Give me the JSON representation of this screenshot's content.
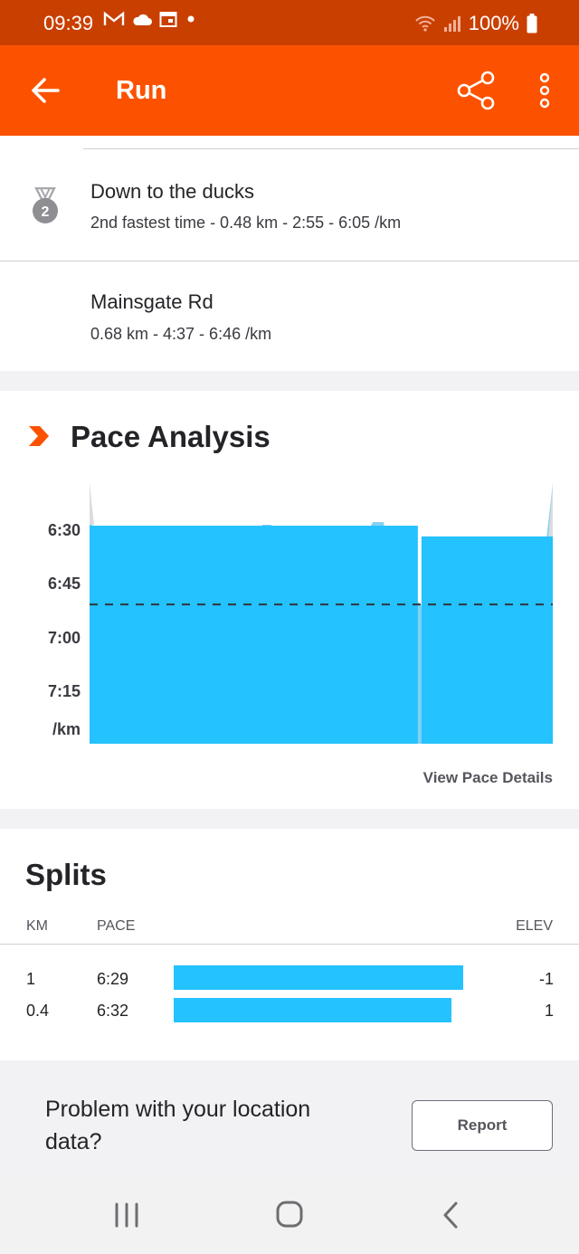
{
  "status_bar": {
    "time": "09:39",
    "battery": "100%"
  },
  "app_bar": {
    "title": "Run"
  },
  "segments": [
    {
      "title": "Down to the ducks",
      "subtitle": "2nd fastest time - 0.48 km - 2:55 - 6:05 /km",
      "medal_rank": "2"
    },
    {
      "title": "Mainsgate Rd",
      "subtitle": "0.68 km - 4:37 - 6:46 /km"
    }
  ],
  "pace_analysis": {
    "title": "Pace Analysis",
    "view_details": "View Pace Details",
    "y_unit": "/km",
    "chart_data": {
      "type": "bar",
      "categories": [
        "1",
        "0.4"
      ],
      "values": [
        "6:29",
        "6:32"
      ],
      "y_ticks": [
        "6:30",
        "6:45",
        "7:00",
        "7:15"
      ],
      "average_line": "6:51",
      "bar_color": "#24c2ff",
      "trace_color": "#1ea9e8"
    }
  },
  "splits": {
    "title": "Splits",
    "headers": {
      "km": "KM",
      "pace": "PACE",
      "elev": "ELEV"
    },
    "rows": [
      {
        "km": "1",
        "pace": "6:29",
        "elev": "-1",
        "fill": 1.0
      },
      {
        "km": "0.4",
        "pace": "6:32",
        "elev": "1",
        "fill": 0.96
      }
    ]
  },
  "problem": {
    "text": "Problem with your location data?",
    "button": "Report"
  },
  "nav": {
    "icons": [
      "recent-apps-icon",
      "home-icon",
      "back-icon"
    ]
  },
  "colors": {
    "brand": "#fc5200",
    "status_bar": "#c93f00",
    "accent_blue": "#24c2ff"
  }
}
